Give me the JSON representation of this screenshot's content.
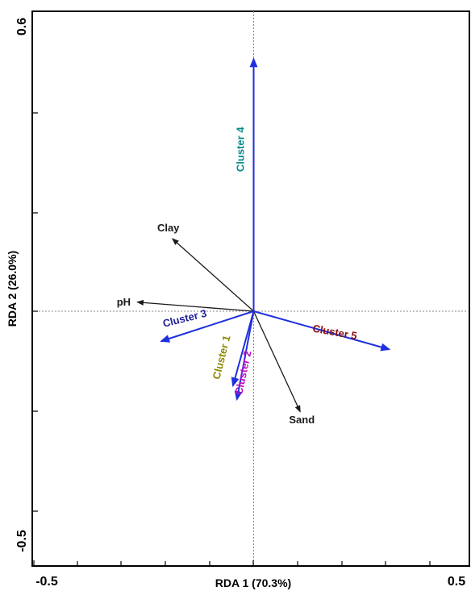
{
  "chart_data": {
    "type": "biplot",
    "xlabel": "RDA 1 (70.3%)",
    "ylabel": "RDA 2 (26.0%)",
    "xlim": [
      -0.5,
      0.5
    ],
    "ylim": [
      -0.5,
      0.6
    ],
    "x_tick_labels": [
      "-0.5",
      "0.5"
    ],
    "y_tick_labels": [
      "-0.5",
      "0.6"
    ],
    "reference_lines": {
      "x": 0,
      "y": 0
    },
    "grid": false,
    "environmental_vectors": [
      {
        "name": "Clay",
        "x": -0.185,
        "y": 0.08,
        "color": "#1a1a1a"
      },
      {
        "name": "pH",
        "x": -0.265,
        "y": 0.01,
        "color": "#1a1a1a"
      },
      {
        "name": "Sand",
        "x": 0.106,
        "y": -0.111,
        "color": "#1a1a1a"
      }
    ],
    "cluster_vectors": [
      {
        "name": "Cluster 1",
        "x": -0.047,
        "y": -0.082,
        "color": "#8a8a00"
      },
      {
        "name": "Cluster 2",
        "x": -0.038,
        "y": -0.097,
        "color": "#c010c0"
      },
      {
        "name": "Cluster 3",
        "x": -0.21,
        "y": -0.033,
        "color": "#1d1d99"
      },
      {
        "name": "Cluster 4",
        "x": 0.0,
        "y": 0.278,
        "color": "#0a8a8a"
      },
      {
        "name": "Cluster 5",
        "x": 0.308,
        "y": -0.042,
        "color": "#8a1010"
      }
    ],
    "cluster_arrow_color": "#1f2fe0"
  }
}
